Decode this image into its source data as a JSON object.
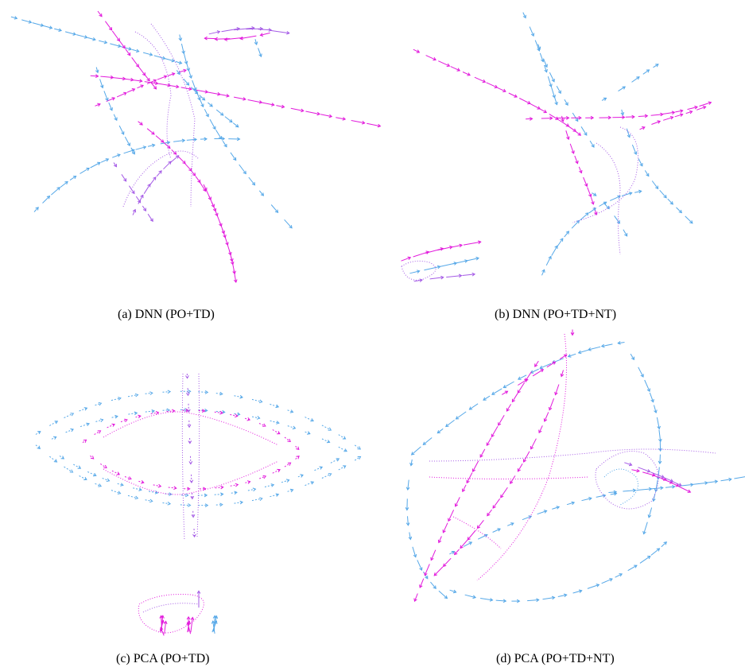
{
  "colors": {
    "blue": "#56a8e8",
    "magenta": "#e21adc",
    "purple": "#a55be6"
  },
  "panels": [
    {
      "id": "a",
      "caption": "(a) DNN (PO+TD)"
    },
    {
      "id": "b",
      "caption": "(b) DNN (PO+TD+NT)"
    },
    {
      "id": "c",
      "caption": "(c) PCA (PO+TD)"
    },
    {
      "id": "d",
      "caption": "(d) PCA (PO+TD+NT)"
    }
  ]
}
